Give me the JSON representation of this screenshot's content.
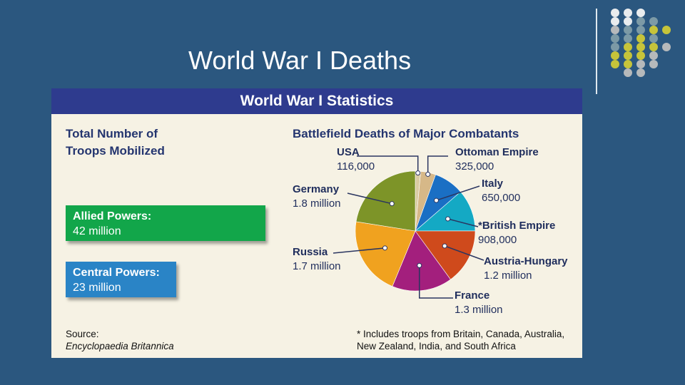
{
  "slide": {
    "title": "World War I Deaths"
  },
  "panel": {
    "header": "World War I Statistics",
    "troops_heading_line1": "Total Number of",
    "troops_heading_line2": "Troops Mobilized",
    "allied": {
      "label": "Allied Powers:",
      "value": "42 million",
      "color": "#12a64a"
    },
    "central": {
      "label": "Central Powers:",
      "value": "23 million",
      "color": "#2a84c6"
    },
    "source_line1": "Source:",
    "source_line2": "Encyclopaedia Britannica",
    "footnote_line1": "* Includes troops from Britain, Canada, Australia,",
    "footnote_line2": "New Zealand, India, and South Africa"
  },
  "chart_data": {
    "type": "pie",
    "title": "Battlefield Deaths of Major Combatants",
    "slices": [
      {
        "name": "USA",
        "value": 116000,
        "label": "116,000",
        "color": "#d9cba2"
      },
      {
        "name": "Ottoman Empire",
        "value": 325000,
        "label": "325,000",
        "color": "#d6b888"
      },
      {
        "name": "Italy",
        "value": 650000,
        "label": "650,000",
        "color": "#1a6fc4"
      },
      {
        "name": "*British Empire",
        "value": 908000,
        "label": "908,000",
        "color": "#14a9c4"
      },
      {
        "name": "Austria-Hungary",
        "value": 1200000,
        "label": "1.2 million",
        "color": "#cf4a1c"
      },
      {
        "name": "France",
        "value": 1300000,
        "label": "1.3 million",
        "color": "#a31f7d"
      },
      {
        "name": "Russia",
        "value": 1700000,
        "label": "1.7 million",
        "color": "#f0a21f"
      },
      {
        "name": "Germany",
        "value": 1800000,
        "label": "1.8 million",
        "color": "#7d9428"
      }
    ]
  },
  "decor": {
    "dot_colors": {
      "white": "#e9ecee",
      "teal": "#7c9aa6",
      "olive": "#c6c43a",
      "gray": "#b6b9bb"
    }
  }
}
